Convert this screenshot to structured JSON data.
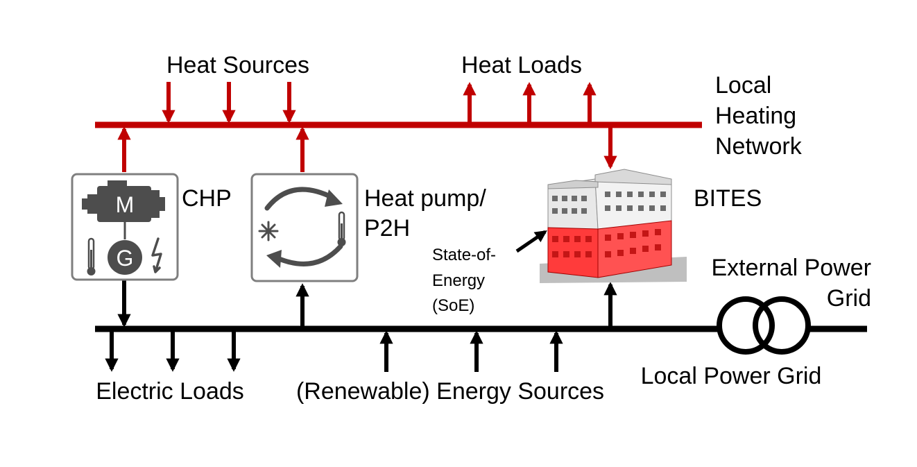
{
  "labels": {
    "heat_sources": "Heat Sources",
    "heat_loads": "Heat Loads",
    "local_heating_network": [
      "Local",
      "Heating",
      "Network"
    ],
    "chp": "CHP",
    "heat_pump": [
      "Heat pump/",
      "P2H"
    ],
    "bites": "BITES",
    "state_of_energy": [
      "State-of-",
      "Energy",
      "(SoE)"
    ],
    "external_power_grid": [
      "External Power",
      "Grid"
    ],
    "local_power_grid": "Local Power Grid",
    "electric_loads": "Electric Loads",
    "energy_sources": "(Renewable) Energy Sources"
  },
  "chp_unit": {
    "motor_letter": "M",
    "generator_letter": "G"
  },
  "colors": {
    "heat_network": "#c00000",
    "power_grid": "#000000",
    "device_border": "#7f7f7f",
    "device_icon": "#4d4d4d",
    "building_red": "#ff3b3b",
    "building_grey": "#d9d9d9"
  },
  "icons": {
    "chp": "engine-generator-icon",
    "heat_pump": "heat-pump-cycle-icon",
    "building": "building-icon",
    "transformer": "transformer-icon"
  }
}
